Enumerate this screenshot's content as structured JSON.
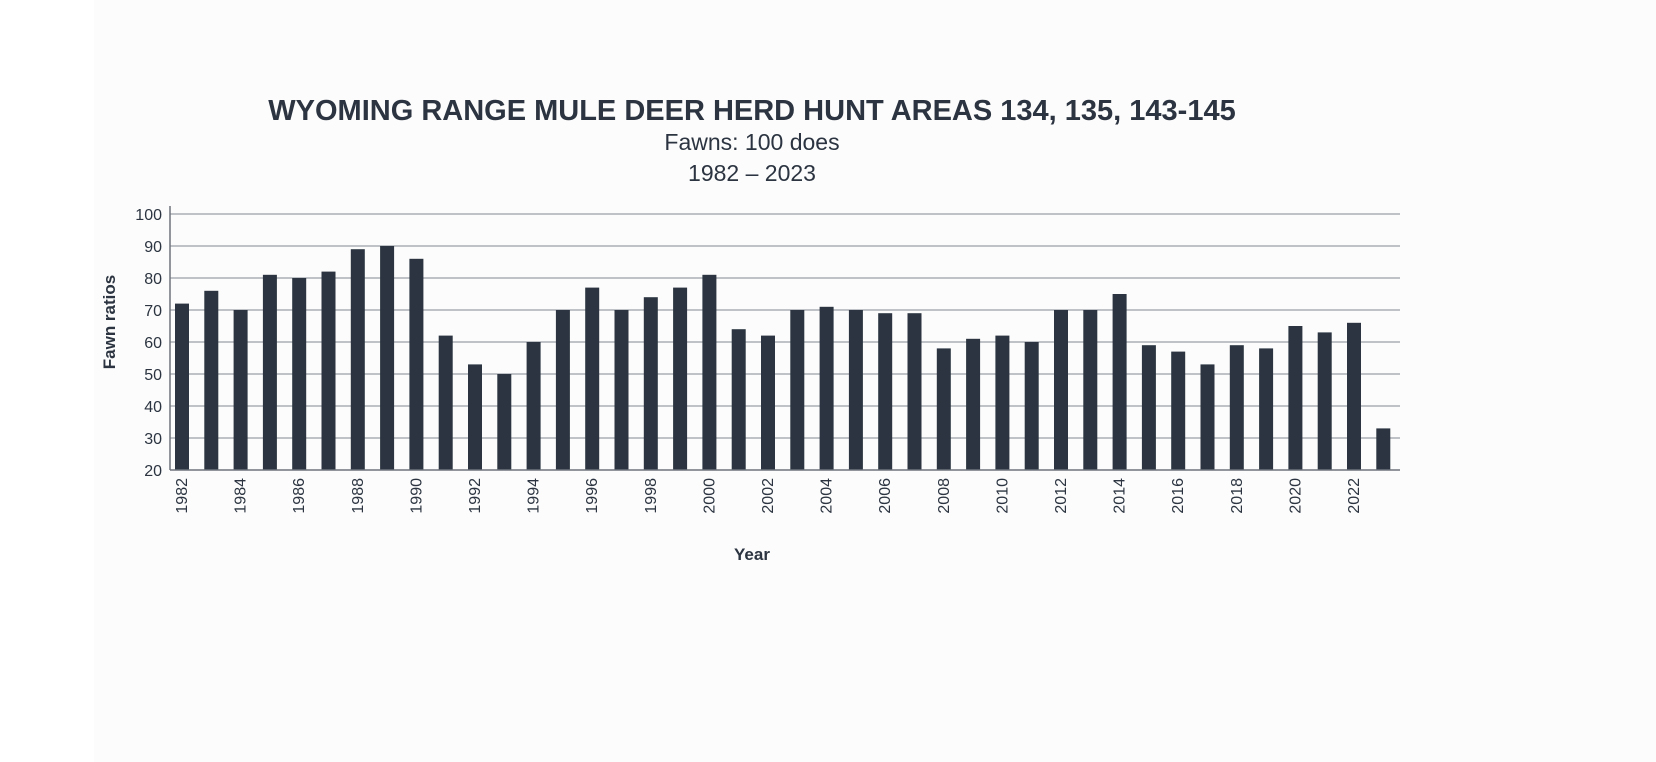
{
  "colors": {
    "bar": "#2b3440",
    "text": "#2b3440",
    "grid": "#9a9fa6",
    "background": "#fcfcfc"
  },
  "chart_data": {
    "type": "bar",
    "title": "WYOMING RANGE MULE DEER HERD HUNT AREAS 134, 135, 143-145",
    "subtitle": "Fawns: 100 does",
    "subtitle2": "1982 – 2023",
    "xlabel": "Year",
    "ylabel": "Fawn ratios",
    "ylim": [
      20,
      100
    ],
    "yticks": [
      20,
      30,
      40,
      50,
      60,
      70,
      80,
      90,
      100
    ],
    "grid": true,
    "categories": [
      1982,
      1983,
      1984,
      1985,
      1986,
      1987,
      1988,
      1989,
      1990,
      1991,
      1992,
      1993,
      1994,
      1995,
      1996,
      1997,
      1998,
      1999,
      2000,
      2001,
      2002,
      2003,
      2004,
      2005,
      2006,
      2007,
      2008,
      2009,
      2010,
      2011,
      2012,
      2013,
      2014,
      2015,
      2016,
      2017,
      2018,
      2019,
      2020,
      2021,
      2022,
      2023
    ],
    "xtick_labels": [
      "1982",
      "1984",
      "1986",
      "1988",
      "1990",
      "1992",
      "1994",
      "1996",
      "1998",
      "2000",
      "2002",
      "2004",
      "2006",
      "2008",
      "2010",
      "2012",
      "2014",
      "2016",
      "2018",
      "2020",
      "2022"
    ],
    "values": [
      72,
      76,
      70,
      81,
      80,
      82,
      89,
      90,
      86,
      62,
      53,
      50,
      60,
      70,
      77,
      70,
      74,
      77,
      81,
      64,
      62,
      70,
      71,
      70,
      69,
      69,
      58,
      61,
      62,
      60,
      70,
      70,
      75,
      59,
      57,
      53,
      59,
      58,
      65,
      63,
      66,
      33
    ]
  }
}
